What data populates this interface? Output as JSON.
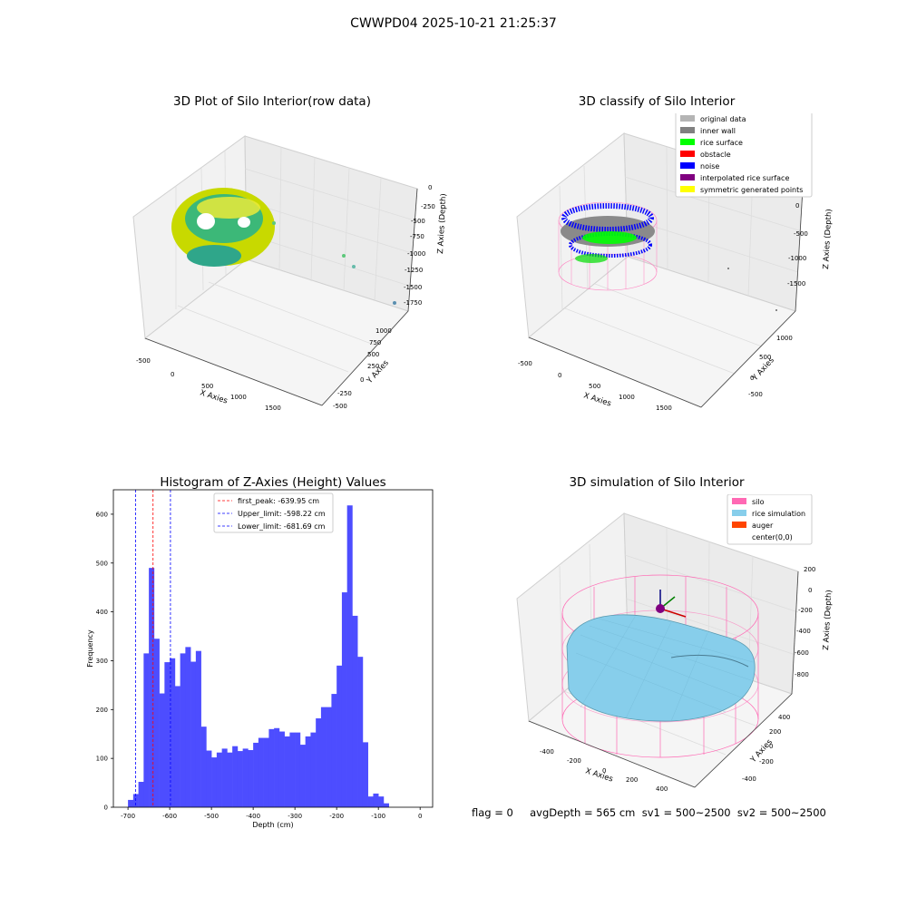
{
  "figure": {
    "suptitle": "CWWPD04 2025-10-21 21:25:37",
    "footer": "flag = 0     avgDepth = 565 cm  sv1 = 500~2500  sv2 = 500~2500"
  },
  "panels": {
    "tl": {
      "title": "3D Plot of Silo Interior(row data)",
      "xlabel": "X Axies",
      "ylabel": "Y Axies",
      "zlabel": "Z Axies (Depth)",
      "xticks": [
        "-500",
        "0",
        "500",
        "1000",
        "1500"
      ],
      "yticks": [
        "-500",
        "-250",
        "0",
        "250",
        "500",
        "750",
        "1000"
      ],
      "zticks": [
        "0",
        "-250",
        "-500",
        "-750",
        "-1000",
        "-1250",
        "-1500",
        "-1750"
      ]
    },
    "tr": {
      "title": "3D classify of Silo Interior",
      "xlabel": "X Axies",
      "ylabel": "Y Axies",
      "zlabel": "Z Axies (Depth)",
      "xticks": [
        "-500",
        "0",
        "500",
        "1000",
        "1500"
      ],
      "yticks": [
        "-500",
        "0",
        "500",
        "1000"
      ],
      "zticks": [
        "0",
        "-500",
        "-1000",
        "-1500"
      ],
      "legend": [
        {
          "label": "original data",
          "color": "#b4b4b4"
        },
        {
          "label": "inner wall",
          "color": "#808080"
        },
        {
          "label": "rice surface",
          "color": "#00ff00"
        },
        {
          "label": "obstacle",
          "color": "#ff0000"
        },
        {
          "label": "noise",
          "color": "#0000ff"
        },
        {
          "label": "interpolated rice surface",
          "color": "#800080"
        },
        {
          "label": "symmetric generated points",
          "color": "#ffff00"
        }
      ]
    },
    "br": {
      "title": "3D simulation of Silo Interior",
      "xlabel": "X Axies",
      "ylabel": "Y Axies",
      "zlabel": "Z Axies (Depth)",
      "xticks": [
        "-400",
        "-200",
        "0",
        "200",
        "400"
      ],
      "yticks": [
        "-400",
        "-200",
        "0",
        "200",
        "400"
      ],
      "zticks": [
        "200",
        "0",
        "-200",
        "-400",
        "-600",
        "-800"
      ],
      "legend": [
        {
          "label": "silo",
          "color": "#ff69b4"
        },
        {
          "label": "rice simulation",
          "color": "#87ceeb"
        },
        {
          "label": "auger",
          "color": "#ff4500"
        },
        {
          "label": "center(0,0)",
          "color": "#ffffff"
        }
      ]
    }
  },
  "chart_data": [
    {
      "type": "histogram",
      "title": "Histogram of Z-Axies (Height) Values",
      "xlabel": "Depth (cm)",
      "ylabel": "Frequency",
      "xlim": [
        -735,
        30
      ],
      "ylim": [
        0,
        650
      ],
      "xticks": [
        -700,
        -600,
        -500,
        -400,
        -300,
        -200,
        -100,
        0
      ],
      "yticks": [
        0,
        100,
        200,
        300,
        400,
        500,
        600
      ],
      "bar_color": "#4d4dff",
      "bin_width": 12.5,
      "bin_start": -700,
      "values": [
        15,
        27,
        52,
        315,
        490,
        345,
        233,
        297,
        305,
        248,
        315,
        328,
        298,
        320,
        165,
        116,
        102,
        112,
        120,
        112,
        125,
        115,
        120,
        117,
        132,
        142,
        142,
        160,
        162,
        155,
        145,
        153,
        153,
        128,
        145,
        153,
        182,
        205,
        205,
        232,
        290,
        440,
        618,
        392,
        308,
        133,
        22,
        28,
        22,
        8
      ],
      "lines": [
        {
          "label": "first_peak: -639.95 cm",
          "x": -639.95,
          "color": "#ff0000"
        },
        {
          "label": "Upper_limit: -598.22 cm",
          "x": -598.22,
          "color": "#0000ff"
        },
        {
          "label": "Lower_limit: -681.69 cm",
          "x": -681.69,
          "color": "#0000ff"
        }
      ],
      "legend_position": "top-center"
    }
  ]
}
